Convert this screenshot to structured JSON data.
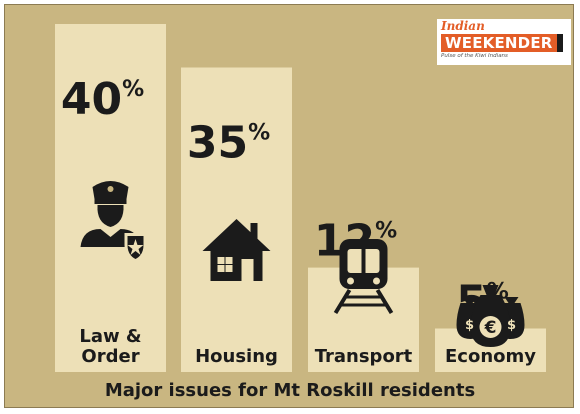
{
  "logo": {
    "line1": "Indian",
    "line2": "WEEKENDER",
    "tagline": "Pulse of the Kiwi Indians"
  },
  "colors": {
    "background": "#c9b681",
    "bar": "#ede0b7",
    "text": "#1b1b1b",
    "logo_accent": "#e35d27"
  },
  "chart_data": {
    "type": "bar",
    "title": "Major issues for Mt Roskill residents",
    "categories": [
      "Law & Order",
      "Housing",
      "Transport",
      "Economy"
    ],
    "category_lines": [
      [
        "Law &",
        "Order"
      ],
      [
        "Housing"
      ],
      [
        "Transport"
      ],
      [
        "Economy"
      ]
    ],
    "values": [
      40,
      35,
      12,
      5
    ],
    "value_labels": [
      "40",
      "35",
      "12",
      "5"
    ],
    "unit": "%",
    "icons": [
      "police-officer-icon",
      "house-icon",
      "train-icon",
      "money-bags-icon"
    ],
    "ylim": [
      0,
      40
    ],
    "grid": false,
    "legend": "none"
  }
}
